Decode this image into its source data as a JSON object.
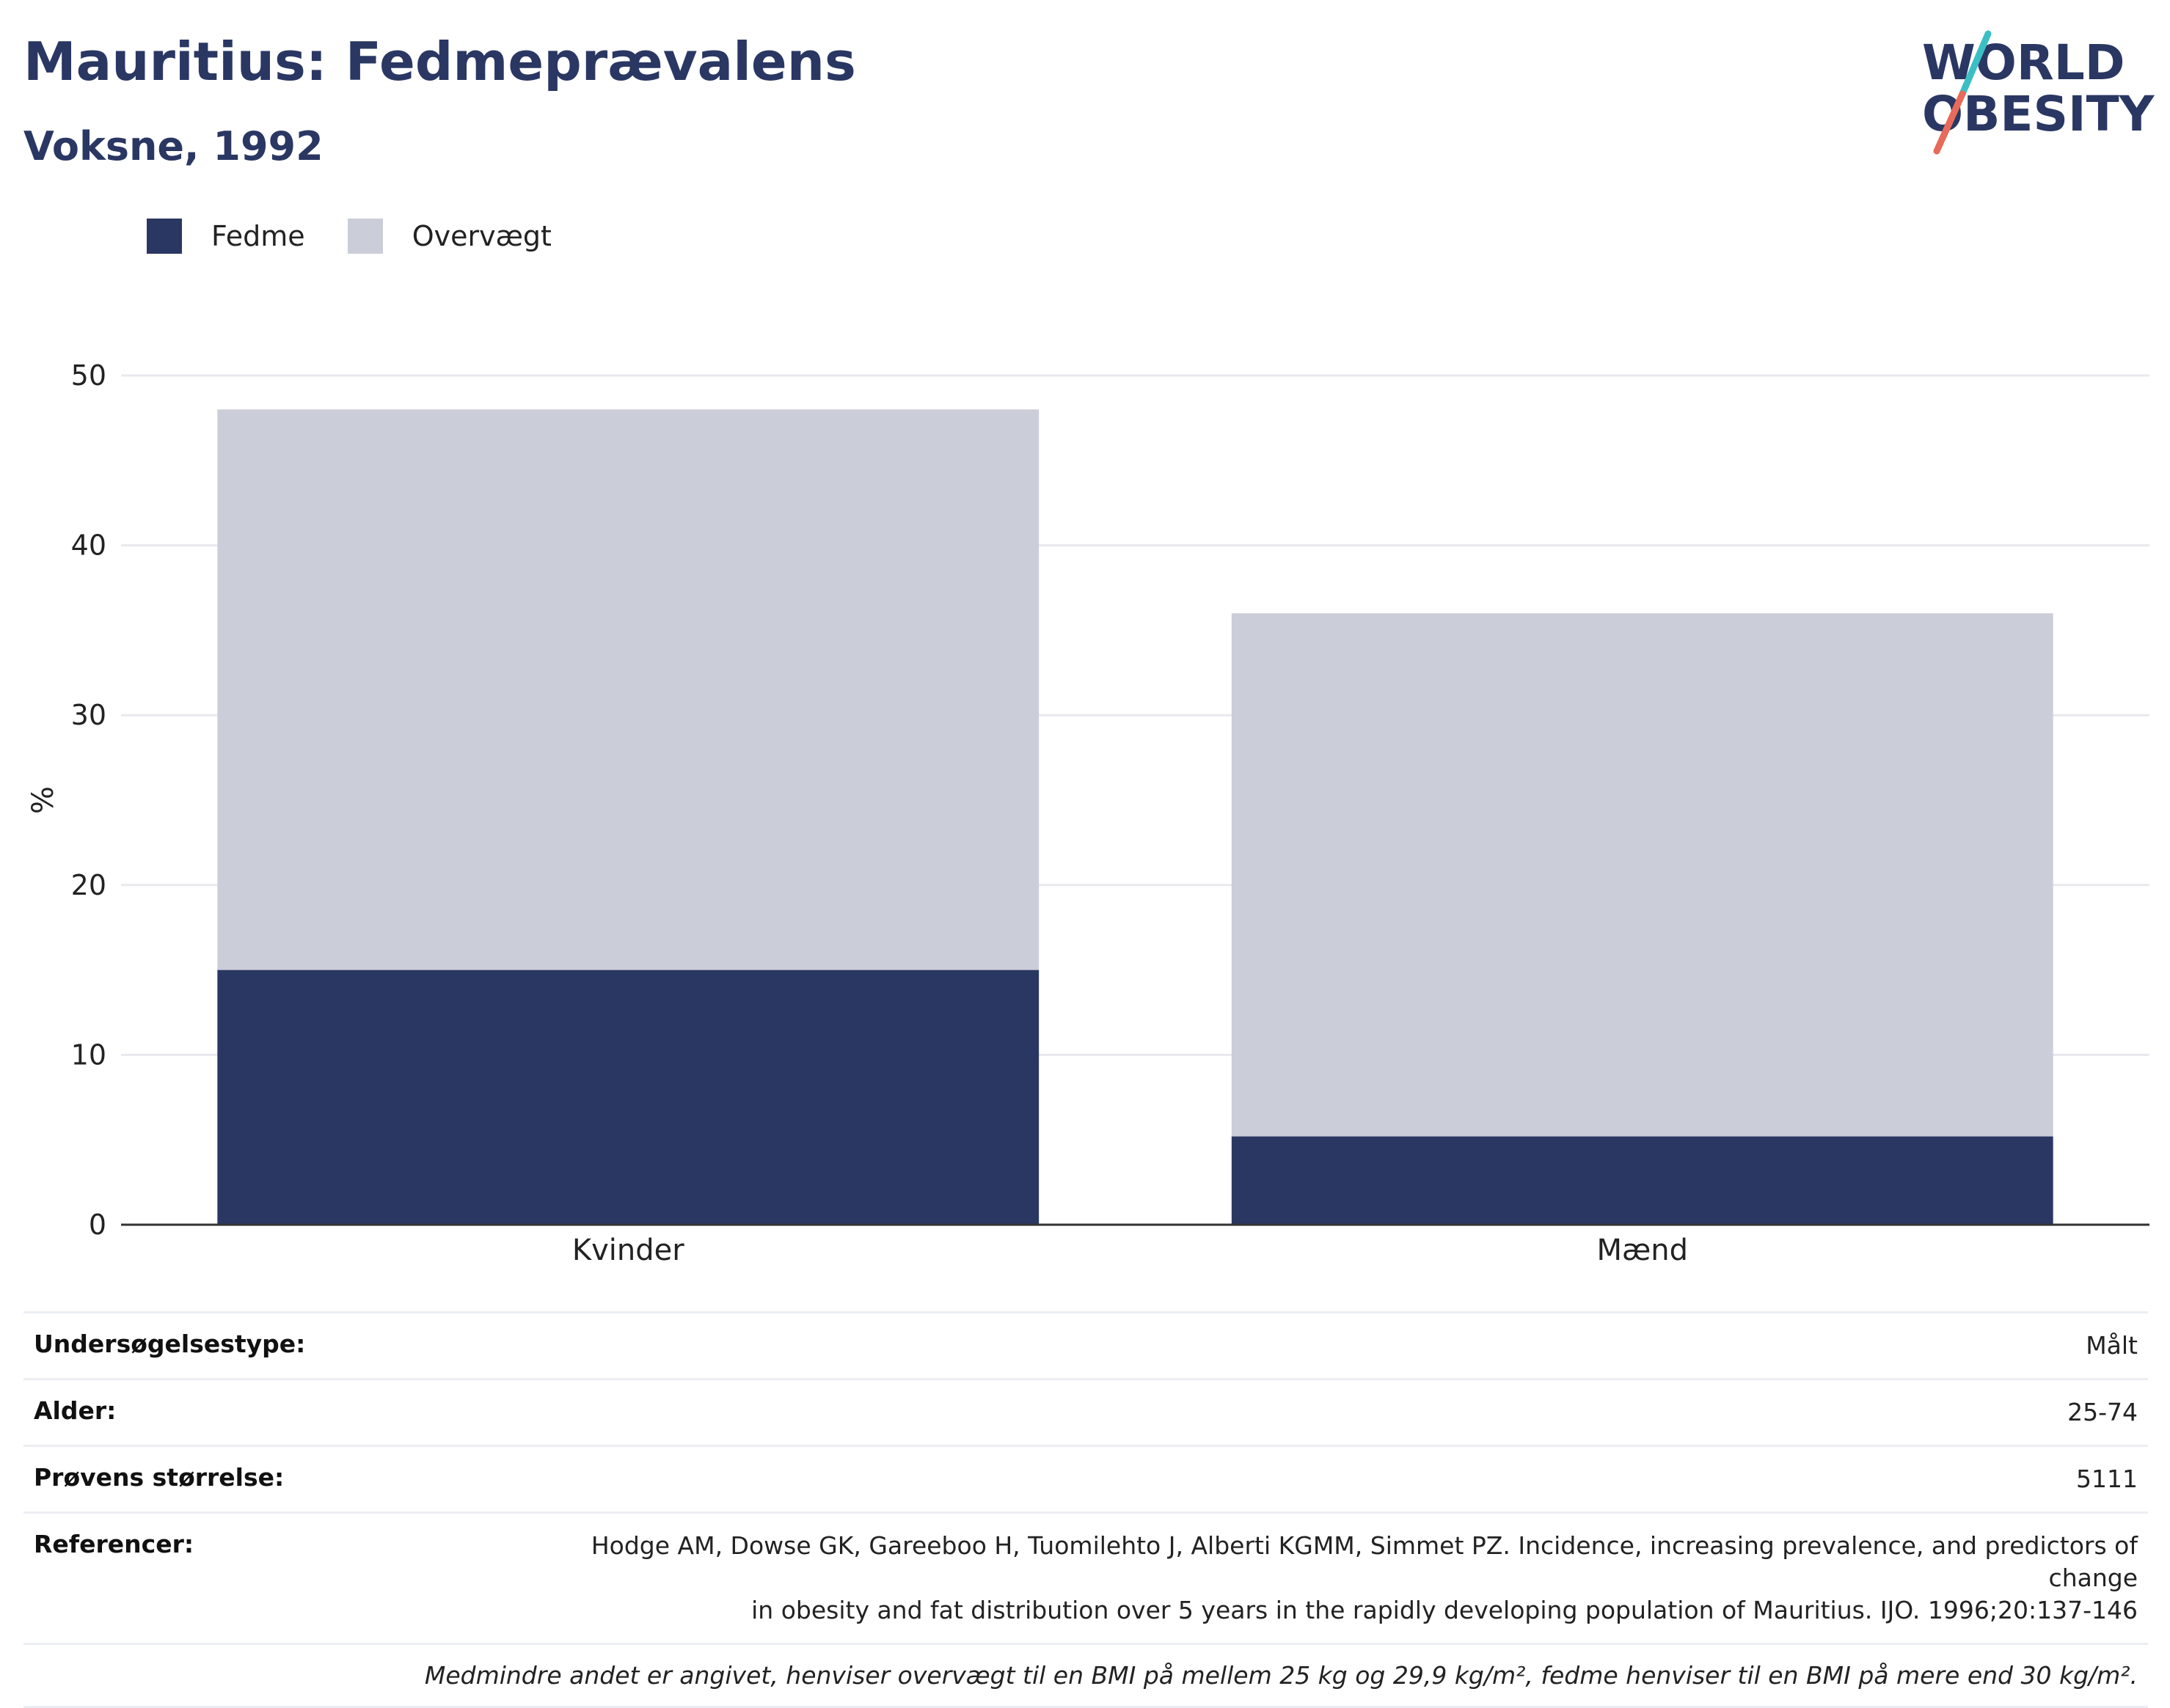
{
  "header": {
    "title": "Mauritius: Fedmeprævalens",
    "subtitle": "Voksne, 1992",
    "logo_text": "WORLD OBESITY"
  },
  "colors": {
    "obesity": "#2a3763",
    "overweight": "#cbcdd8",
    "grid": "#e8e9ee",
    "axis": "#333333",
    "logo_text": "#2a3763",
    "logo_slash_teal": "#3bbfc4",
    "logo_slash_red": "#e86a5a"
  },
  "chart_data": {
    "type": "bar",
    "stacked": true,
    "categories": [
      "Kvinder",
      "Mænd"
    ],
    "series": [
      {
        "name": "Fedme",
        "values": [
          15,
          5.2
        ]
      },
      {
        "name": "Overvægt",
        "values": [
          33,
          30.8
        ]
      }
    ],
    "title": "Mauritius: Fedmeprævalens",
    "subtitle": "Voksne, 1992",
    "xlabel": "",
    "ylabel": "%",
    "ylim": [
      0,
      50
    ],
    "yticks": [
      0,
      10,
      20,
      30,
      40,
      50
    ],
    "grid": true,
    "legend_position": "top-left"
  },
  "meta": {
    "rows": [
      {
        "label": "Undersøgelsestype:",
        "value": "Målt"
      },
      {
        "label": "Alder:",
        "value": "25-74"
      },
      {
        "label": "Prøvens størrelse:",
        "value": "5111"
      },
      {
        "label": "Referencer:",
        "value_lines": [
          "Hodge AM, Dowse GK, Gareeboo H, Tuomilehto J, Alberti KGMM, Simmet PZ. Incidence, increasing prevalence, and predictors of change",
          "in obesity and fat distribution over 5 years in the rapidly developing population of Mauritius. IJO. 1996;20:137-146"
        ]
      }
    ],
    "note": "Medmindre andet er angivet, henviser overvægt til en BMI på mellem 25 kg og 29,9 kg/m², fedme henviser til en BMI på mere end 30 kg/m²."
  }
}
